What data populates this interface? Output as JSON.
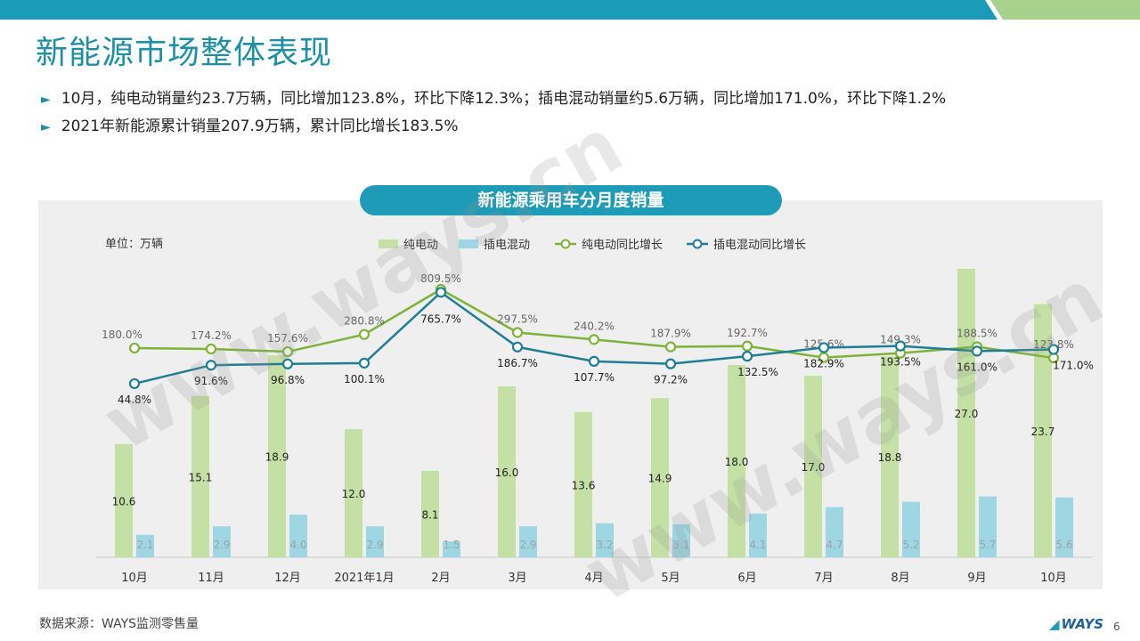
{
  "slide": {
    "title": "新能源市场整体表现",
    "bullets": [
      "10月，纯电动销量约23.7万辆，同比增加123.8%，环比下降12.3%；插电混动销量约5.6万辆，同比增加171.0%，环比下降1.2%",
      "2021年新能源累计销量207.9万辆，累计同比增长183.5%"
    ],
    "bullet_marker": "►",
    "source": "数据来源：WAYS监测零售量",
    "logo": "WAYS",
    "page_number": "6",
    "watermark": "www.ways.cn",
    "colors": {
      "accent": "#1e9bb6",
      "top_bar_left": "#1a9cb8",
      "top_bar_right": "#a9d18e"
    }
  },
  "chart_data": {
    "type": "bar",
    "title": "新能源乘用车分月度销量",
    "unit_label": "单位：万辆",
    "categories": [
      "10月",
      "11月",
      "12月",
      "2021年1月",
      "2月",
      "3月",
      "4月",
      "5月",
      "6月",
      "7月",
      "8月",
      "9月",
      "10月"
    ],
    "series": [
      {
        "name": "纯电动",
        "kind": "bar",
        "color": "#c5e0a5",
        "values": [
          10.6,
          15.1,
          18.9,
          12.0,
          8.1,
          16.0,
          13.6,
          14.9,
          18.0,
          17.0,
          18.8,
          27.0,
          23.7
        ]
      },
      {
        "name": "插电混动",
        "kind": "bar",
        "color": "#9ed7e3",
        "values": [
          2.1,
          2.9,
          4.0,
          2.9,
          1.5,
          2.9,
          3.2,
          3.1,
          4.1,
          4.7,
          5.2,
          5.7,
          5.6
        ]
      },
      {
        "name": "纯电动同比增长",
        "kind": "line",
        "color": "#7fb23a",
        "values": [
          180.0,
          174.2,
          157.6,
          280.8,
          809.5,
          297.5,
          240.2,
          187.9,
          192.7,
          125.6,
          149.3,
          188.5,
          123.8
        ],
        "labels": [
          "180.0%",
          "174.2%",
          "157.6%",
          "280.8%",
          "809.5%",
          "297.5%",
          "240.2%",
          "187.9%",
          "192.7%",
          "125.6%",
          "149.3%",
          "188.5%",
          "123.8%"
        ]
      },
      {
        "name": "插电混动同比增长",
        "kind": "line",
        "color": "#1f7d95",
        "values": [
          44.8,
          91.6,
          96.8,
          100.1,
          765.7,
          186.7,
          107.7,
          97.2,
          132.5,
          182.9,
          193.5,
          161.0,
          171.0
        ],
        "labels": [
          "44.8%",
          "91.6%",
          "96.8%",
          "100.1%",
          "765.7%",
          "186.7%",
          "107.7%",
          "97.2%",
          "132.5%",
          "182.9%",
          "193.5%",
          "161.0%",
          "171.0%"
        ]
      }
    ],
    "legend_position": "top",
    "grid": false
  }
}
